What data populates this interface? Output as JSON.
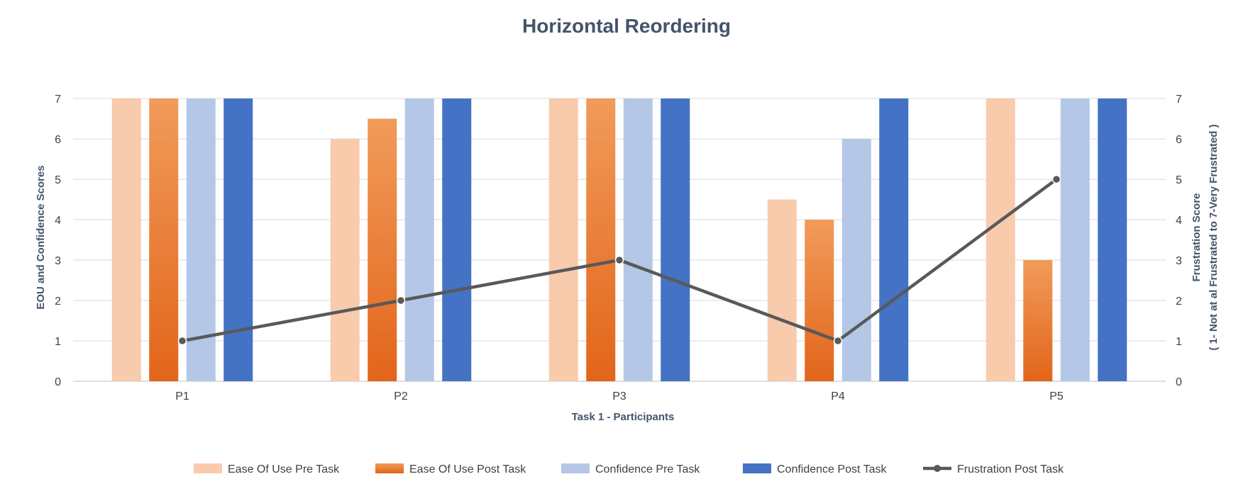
{
  "chart_data": {
    "type": "bar",
    "title": "Horizontal Reordering",
    "xlabel": "Task 1 - Participants",
    "ylabel": "EOU and Confidence Scores",
    "y2label_line1": "Frustration Score",
    "y2label_line2": "( 1- Not at al Frustrated to 7-Very Frustrated )",
    "ylim": [
      0,
      7
    ],
    "y2lim": [
      0,
      7
    ],
    "yticks": [
      0,
      1,
      2,
      3,
      4,
      5,
      6,
      7
    ],
    "grid": true,
    "legend_position": "bottom",
    "categories": [
      "P1",
      "P2",
      "P3",
      "P4",
      "P5"
    ],
    "series": [
      {
        "name": "Ease Of Use Pre Task",
        "kind": "bar",
        "values": [
          7,
          6,
          7,
          4.5,
          7
        ],
        "color": "#F8CBAD"
      },
      {
        "name": "Ease Of Use  Post Task",
        "kind": "bar",
        "values": [
          7,
          6.5,
          7,
          4,
          3
        ],
        "color": "#ED7D31",
        "gradient_top": "#F19B5B",
        "gradient_bottom": "#E2651A"
      },
      {
        "name": "Confidence  Pre Task",
        "kind": "bar",
        "values": [
          7,
          7,
          7,
          6,
          7
        ],
        "color": "#B4C7E7"
      },
      {
        "name": "Confidence  Post Task",
        "kind": "bar",
        "values": [
          7,
          7,
          7,
          7,
          7
        ],
        "color": "#4472C4"
      },
      {
        "name": "Frustration Post Task",
        "kind": "line",
        "axis": "secondary",
        "values": [
          1,
          2,
          3,
          1,
          5
        ],
        "color": "#595959",
        "marker_color": "#595959"
      }
    ]
  }
}
